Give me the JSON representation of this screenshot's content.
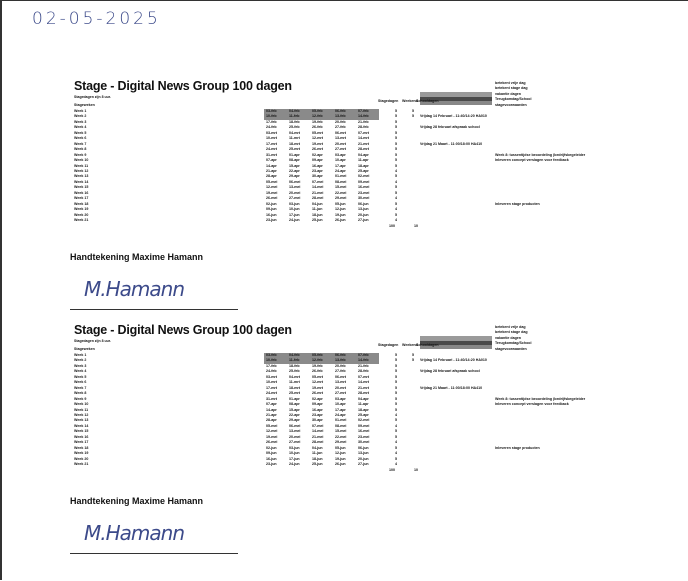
{
  "handwritten_date": "02-05-2025",
  "document": {
    "title": "Stage - Digital News Group 100 dagen",
    "subtitle": "Stagedagen zijn 8 uur.",
    "label_header": "Stageweken",
    "stagedagen_header": "Stagedagen",
    "weekend_header": "Weekend",
    "schooldagen_header": "Schooldagen",
    "total_days": "100",
    "total_weekend": "10",
    "signature_label": "Handtekening Maxime Hamann",
    "signature": "M.Hamann",
    "legend": [
      "betekent vrije dag",
      "betekent stage dag",
      "vakantie dagen",
      "Terugkomdag/School",
      "stagevoorwaarden"
    ],
    "notes": [
      {
        "week": 2,
        "text": "Vrijdag 14 Februari - 11:40/14:20 HA010"
      },
      {
        "week": 4,
        "text": "Vrijdag 28 februari afspraak school"
      },
      {
        "week": 7,
        "text": "Vrijdag 21 Maart - 11:00/18:00 HA410"
      }
    ],
    "side_notes": [
      {
        "week": 9,
        "text": "Week 8: tussentijdse beoordeling (bedrijfsbegeleider"
      },
      {
        "week": 10,
        "text": "Inleveren concept verslagen voor feedback"
      },
      {
        "week": 18,
        "text": "Inleveren stage producten"
      }
    ],
    "weeks": [
      {
        "label": "Week 1",
        "dates": [
          "03-feb",
          "04-feb",
          "05-feb",
          "06-feb",
          "07-feb"
        ],
        "days": "5",
        "weekend": "5"
      },
      {
        "label": "Week 2",
        "dates": [
          "10-feb",
          "11-feb",
          "12-feb",
          "13-feb",
          "14-feb"
        ],
        "days": "5",
        "weekend": "5"
      },
      {
        "label": "Week 3",
        "dates": [
          "17-feb",
          "18-feb",
          "19-feb",
          "20-feb",
          "21-feb"
        ],
        "days": "5",
        "weekend": ""
      },
      {
        "label": "Week 4",
        "dates": [
          "24-feb",
          "25-feb",
          "26-feb",
          "27-feb",
          "28-feb"
        ],
        "days": "5",
        "weekend": ""
      },
      {
        "label": "Week 5",
        "dates": [
          "03-mrt",
          "04-mrt",
          "05-mrt",
          "06-mrt",
          "07-mrt"
        ],
        "days": "5",
        "weekend": ""
      },
      {
        "label": "Week 6",
        "dates": [
          "10-mrt",
          "11-mrt",
          "12-mrt",
          "13-mrt",
          "14-mrt"
        ],
        "days": "5",
        "weekend": ""
      },
      {
        "label": "Week 7",
        "dates": [
          "17-mrt",
          "18-mrt",
          "19-mrt",
          "20-mrt",
          "21-mrt"
        ],
        "days": "5",
        "weekend": ""
      },
      {
        "label": "Week 8",
        "dates": [
          "24-mrt",
          "25-mrt",
          "26-mrt",
          "27-mrt",
          "28-mrt"
        ],
        "days": "5",
        "weekend": ""
      },
      {
        "label": "Week 9",
        "dates": [
          "31-mrt",
          "01-apr",
          "02-apr",
          "03-apr",
          "04-apr"
        ],
        "days": "5",
        "weekend": ""
      },
      {
        "label": "Week 10",
        "dates": [
          "07-apr",
          "08-apr",
          "09-apr",
          "10-apr",
          "11-apr"
        ],
        "days": "5",
        "weekend": ""
      },
      {
        "label": "Week 11",
        "dates": [
          "14-apr",
          "15-apr",
          "16-apr",
          "17-apr",
          "18-apr"
        ],
        "days": "5",
        "weekend": ""
      },
      {
        "label": "Week 12",
        "dates": [
          "21-apr",
          "22-apr",
          "23-apr",
          "24-apr",
          "25-apr"
        ],
        "days": "4",
        "weekend": ""
      },
      {
        "label": "Week 13",
        "dates": [
          "28-apr",
          "29-apr",
          "30-apr",
          "01-mei",
          "02-mei"
        ],
        "days": "5",
        "weekend": ""
      },
      {
        "label": "Week 14",
        "dates": [
          "05-mei",
          "06-mei",
          "07-mei",
          "08-mei",
          "09-mei"
        ],
        "days": "4",
        "weekend": ""
      },
      {
        "label": "Week 15",
        "dates": [
          "12-mei",
          "13-mei",
          "14-mei",
          "15-mei",
          "16-mei"
        ],
        "days": "5",
        "weekend": ""
      },
      {
        "label": "Week 16",
        "dates": [
          "19-mei",
          "20-mei",
          "21-mei",
          "22-mei",
          "23-mei"
        ],
        "days": "5",
        "weekend": ""
      },
      {
        "label": "Week 17",
        "dates": [
          "26-mei",
          "27-mei",
          "28-mei",
          "29-mei",
          "30-mei"
        ],
        "days": "4",
        "weekend": ""
      },
      {
        "label": "Week 18",
        "dates": [
          "02-jun",
          "03-jun",
          "04-jun",
          "05-jun",
          "06-jun"
        ],
        "days": "5",
        "weekend": ""
      },
      {
        "label": "Week 19",
        "dates": [
          "09-jun",
          "10-jun",
          "11-jun",
          "12-jun",
          "13-jun"
        ],
        "days": "4",
        "weekend": ""
      },
      {
        "label": "Week 20",
        "dates": [
          "16-jun",
          "17-jun",
          "18-jun",
          "19-jun",
          "20-jun"
        ],
        "days": "5",
        "weekend": ""
      },
      {
        "label": "Week 21",
        "dates": [
          "23-jun",
          "24-jun",
          "25-jun",
          "26-jun",
          "27-jun"
        ],
        "days": "4",
        "weekend": ""
      }
    ]
  }
}
